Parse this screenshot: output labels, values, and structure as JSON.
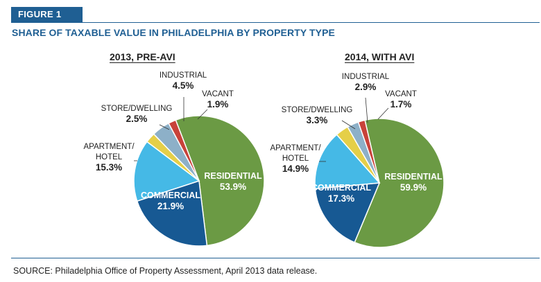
{
  "figure_label": "FIGURE 1",
  "figure_title": "SHARE OF TAXABLE VALUE IN PHILADELPHIA BY PROPERTY TYPE",
  "source": "SOURCE: Philadelphia Office of Property Assessment, April 2013 data release.",
  "colors": {
    "brand_blue": "#1f5f93",
    "residential": "#6b9a44",
    "commercial": "#175993",
    "apartment_hotel": "#45b9e6",
    "store_dwelling": "#e5cf48",
    "industrial": "#8db0c8",
    "vacant": "#c8423a"
  },
  "chart_data": [
    {
      "type": "pie",
      "title": "2013, PRE-AVI",
      "slices": [
        {
          "label": "RESIDENTIAL",
          "value": 53.9,
          "value_label": "53.9%",
          "color": "#6b9a44"
        },
        {
          "label": "COMMERCIAL",
          "value": 21.9,
          "value_label": "21.9%",
          "color": "#175993"
        },
        {
          "label": "APARTMENT/ HOTEL",
          "value": 15.3,
          "value_label": "15.3%",
          "color": "#45b9e6"
        },
        {
          "label": "STORE/DWELLING",
          "value": 2.5,
          "value_label": "2.5%",
          "color": "#e5cf48"
        },
        {
          "label": "INDUSTRIAL",
          "value": 4.5,
          "value_label": "4.5%",
          "color": "#8db0c8"
        },
        {
          "label": "VACANT",
          "value": 1.9,
          "value_label": "1.9%",
          "color": "#c8423a"
        }
      ]
    },
    {
      "type": "pie",
      "title": "2014, WITH AVI",
      "slices": [
        {
          "label": "RESIDENTIAL",
          "value": 59.9,
          "value_label": "59.9%",
          "color": "#6b9a44"
        },
        {
          "label": "COMMERCIAL",
          "value": 17.3,
          "value_label": "17.3%",
          "color": "#175993"
        },
        {
          "label": "APARTMENT/ HOTEL",
          "value": 14.9,
          "value_label": "14.9%",
          "color": "#45b9e6"
        },
        {
          "label": "STORE/DWELLING",
          "value": 3.3,
          "value_label": "3.3%",
          "color": "#e5cf48"
        },
        {
          "label": "INDUSTRIAL",
          "value": 2.9,
          "value_label": "2.9%",
          "color": "#8db0c8"
        },
        {
          "label": "VACANT",
          "value": 1.7,
          "value_label": "1.7%",
          "color": "#c8423a"
        }
      ]
    }
  ]
}
